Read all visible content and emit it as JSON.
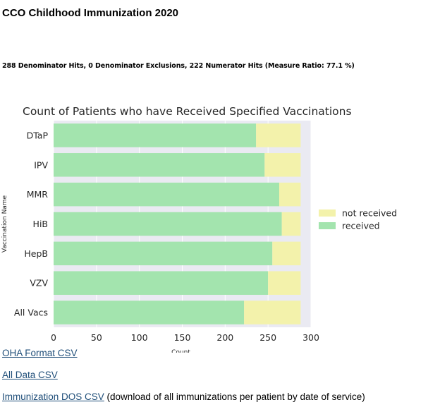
{
  "page": {
    "title": "CCO Childhood Immunization 2020",
    "summary": "288 Denominator Hits, 0 Denominator Exclusions, 222 Numerator Hits (Measure Ratio: 77.1 %)"
  },
  "links": [
    {
      "label": "OHA Format CSV",
      "description": ""
    },
    {
      "label": "All Data CSV",
      "description": ""
    },
    {
      "label": "Immunization DOS CSV",
      "description": " (download of all immunizations per patient by date of service)"
    }
  ],
  "chart_data": {
    "type": "bar",
    "orientation": "horizontal",
    "stacked": true,
    "title": "Count of Patients who have Received Specified Vaccinations",
    "xlabel": "Count",
    "ylabel": "Vaccination Name",
    "categories": [
      "DTaP",
      "IPV",
      "MMR",
      "HiB",
      "HepB",
      "VZV",
      "All Vacs"
    ],
    "series": [
      {
        "name": "received",
        "color": "#a3e4ae",
        "values": [
          236,
          246,
          263,
          266,
          255,
          250,
          222
        ]
      },
      {
        "name": "not received",
        "color": "#f3f2ab",
        "values": [
          52,
          42,
          25,
          22,
          33,
          38,
          66
        ]
      }
    ],
    "xlim": [
      0,
      300
    ],
    "xticks": [
      0,
      50,
      100,
      150,
      200,
      250,
      300
    ],
    "legend_order": [
      "not received",
      "received"
    ],
    "legend_position": "right",
    "grid": true,
    "plot_background": "#eaeaf2"
  }
}
